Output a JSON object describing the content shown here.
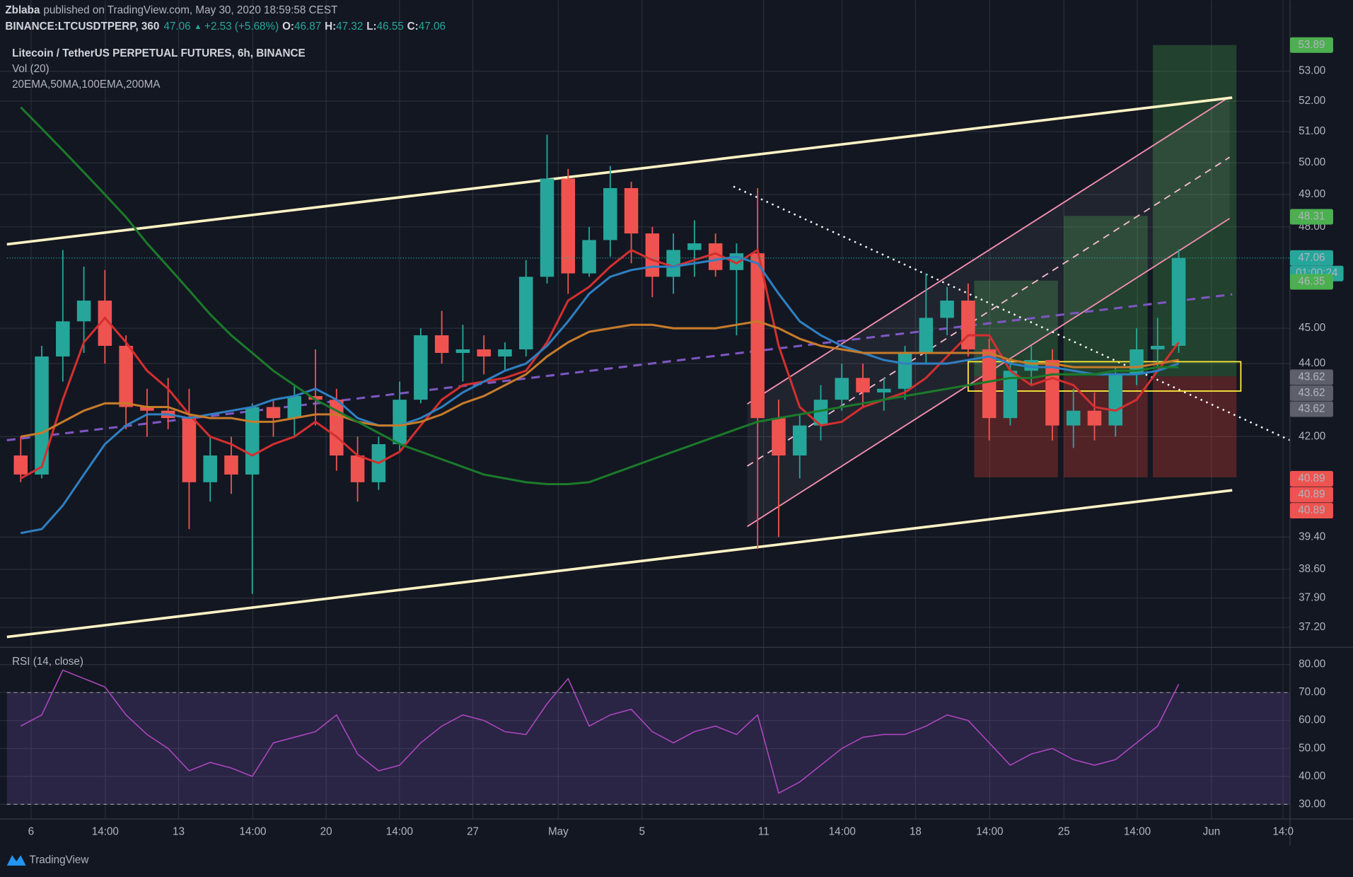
{
  "header": {
    "author": "Zblaba",
    "published": "published on TradingView.com, May 30, 2020 18:59:58 CEST",
    "symbol": "BINANCE:LTCUSDTPERP, 360",
    "last": 47.06,
    "change": "+2.53 (+5.68%)",
    "o_label": "O:",
    "open": 46.87,
    "h_label": "H:",
    "high": 47.32,
    "l_label": "L:",
    "low": 46.55,
    "c_label": "C:",
    "close": 47.06
  },
  "footer": {
    "brand": "TradingView"
  },
  "chart_data": [
    {
      "type": "candlestick",
      "title": "Litecoin / TetherUS PERPETUAL FUTURES, 6h, BINANCE",
      "subtitle": "Vol (20)",
      "indicators": "20EMA,50MA,100EMA,200MA",
      "up_color": "#26a69a",
      "down_color": "#ef5350",
      "open": [
        41.5,
        41.0,
        44.2,
        45.2,
        45.8,
        44.5,
        42.8,
        42.7,
        42.5,
        40.8,
        41.5,
        41.0,
        42.8,
        42.5,
        43.1,
        43.0,
        41.5,
        40.8,
        41.8,
        43.0,
        44.8,
        44.3,
        44.4,
        44.2,
        44.4,
        46.5,
        49.5,
        46.6,
        47.6,
        49.2,
        47.8,
        46.5,
        47.3,
        47.5,
        46.7,
        47.2,
        42.5,
        41.5,
        42.3,
        43.0,
        43.6,
        43.2,
        43.3,
        44.3,
        45.3,
        45.8,
        44.4,
        42.5,
        43.8,
        44.1,
        42.3,
        42.7,
        42.3,
        43.7,
        44.4,
        44.5
      ],
      "high": [
        42.0,
        44.5,
        47.3,
        46.8,
        46.7,
        44.8,
        43.3,
        43.6,
        43.3,
        42.0,
        42.0,
        42.9,
        43.0,
        43.4,
        44.4,
        43.3,
        42.0,
        42.0,
        43.5,
        45.0,
        45.5,
        45.1,
        44.8,
        44.6,
        47.0,
        50.9,
        49.8,
        48.0,
        49.9,
        49.4,
        48.0,
        47.8,
        48.2,
        47.8,
        47.5,
        49.2,
        43.0,
        42.6,
        43.4,
        44.0,
        44.0,
        43.6,
        44.5,
        46.6,
        46.2,
        46.3,
        44.7,
        44.1,
        44.5,
        44.4,
        43.3,
        43.2,
        43.9,
        45.0,
        45.3,
        47.32
      ],
      "low": [
        40.8,
        40.9,
        43.5,
        44.3,
        44.0,
        42.2,
        42.0,
        42.2,
        39.6,
        40.3,
        40.5,
        38.0,
        42.0,
        42.0,
        42.3,
        41.1,
        40.3,
        40.6,
        41.6,
        42.9,
        44.0,
        43.5,
        43.7,
        43.8,
        44.2,
        46.3,
        46.0,
        46.5,
        47.1,
        46.9,
        45.9,
        46.0,
        46.5,
        46.5,
        44.8,
        39.1,
        39.4,
        40.9,
        41.9,
        42.7,
        42.8,
        42.7,
        43.0,
        44.0,
        44.8,
        44.2,
        41.9,
        42.3,
        43.4,
        41.9,
        41.7,
        41.9,
        42.0,
        43.4,
        43.9,
        44.3
      ],
      "close": [
        41.0,
        44.2,
        45.2,
        45.8,
        44.5,
        42.8,
        42.7,
        42.5,
        40.8,
        41.5,
        41.0,
        42.8,
        42.5,
        43.1,
        43.0,
        41.5,
        40.8,
        41.8,
        43.0,
        44.8,
        44.3,
        44.4,
        44.2,
        44.4,
        46.5,
        49.5,
        46.6,
        47.6,
        49.2,
        47.8,
        46.5,
        47.3,
        47.5,
        46.7,
        47.2,
        42.5,
        41.5,
        42.3,
        43.0,
        43.6,
        43.2,
        43.3,
        44.3,
        45.3,
        45.8,
        44.4,
        42.5,
        43.8,
        44.1,
        42.3,
        42.7,
        42.3,
        43.7,
        44.4,
        44.5,
        47.06
      ],
      "series": [
        {
          "color": "#d32f2f",
          "values": [
            40.9,
            41.2,
            43.0,
            44.6,
            45.3,
            44.6,
            43.8,
            43.3,
            42.6,
            42.0,
            41.8,
            41.5,
            41.8,
            42.0,
            42.4,
            42.0,
            41.5,
            41.3,
            41.6,
            42.3,
            43.0,
            43.4,
            43.5,
            43.6,
            43.8,
            44.6,
            45.8,
            46.2,
            46.8,
            47.3,
            47.0,
            46.8,
            47.0,
            47.2,
            46.9,
            47.3,
            44.5,
            42.8,
            42.3,
            42.4,
            42.8,
            43.0,
            43.2,
            43.6,
            44.2,
            44.8,
            44.8,
            43.8,
            43.4,
            43.6,
            43.4,
            42.8,
            42.7,
            43.0,
            43.8,
            44.6
          ]
        },
        {
          "color": "#2f7fc1",
          "values": [
            39.5,
            39.6,
            40.2,
            41.0,
            41.8,
            42.3,
            42.6,
            42.6,
            42.5,
            42.6,
            42.7,
            42.8,
            43.0,
            43.1,
            43.3,
            43.0,
            42.5,
            42.3,
            42.3,
            42.5,
            42.8,
            43.2,
            43.5,
            43.8,
            44.0,
            44.5,
            45.2,
            46.0,
            46.5,
            46.7,
            46.8,
            46.8,
            46.9,
            47.0,
            47.1,
            46.9,
            46.0,
            45.2,
            44.8,
            44.5,
            44.3,
            44.1,
            44.0,
            44.0,
            44.0,
            44.1,
            44.2,
            44.0,
            43.9,
            43.9,
            43.8,
            43.7,
            43.7,
            43.7,
            43.8,
            44.0
          ]
        },
        {
          "color": "#c77b2a",
          "values": [
            42.0,
            42.1,
            42.4,
            42.7,
            42.9,
            42.9,
            42.8,
            42.8,
            42.6,
            42.5,
            42.5,
            42.4,
            42.4,
            42.5,
            42.6,
            42.6,
            42.4,
            42.3,
            42.3,
            42.4,
            42.6,
            42.9,
            43.1,
            43.4,
            43.7,
            44.2,
            44.6,
            44.9,
            45.0,
            45.1,
            45.1,
            45.0,
            45.0,
            45.0,
            45.1,
            45.2,
            45.0,
            44.7,
            44.5,
            44.4,
            44.3,
            44.3,
            44.3,
            44.3,
            44.3,
            44.3,
            44.3,
            44.1,
            44.0,
            44.0,
            43.9,
            43.9,
            43.9,
            43.9,
            44.0,
            44.1
          ]
        },
        {
          "color": "#1b7a2a",
          "values": [
            51.8,
            51.1,
            50.4,
            49.7,
            49.0,
            48.3,
            47.5,
            46.8,
            46.1,
            45.4,
            44.8,
            44.3,
            43.8,
            43.4,
            43.0,
            42.7,
            42.4,
            42.1,
            41.8,
            41.6,
            41.4,
            41.2,
            41.0,
            40.9,
            40.8,
            40.75,
            40.75,
            40.8,
            41.0,
            41.2,
            41.4,
            41.6,
            41.8,
            42.0,
            42.2,
            42.4,
            42.5,
            42.6,
            42.7,
            42.8,
            42.9,
            43.0,
            43.1,
            43.2,
            43.3,
            43.4,
            43.5,
            43.6,
            43.6,
            43.7,
            43.7,
            43.7,
            43.8,
            43.8,
            43.9,
            43.9
          ]
        }
      ],
      "log": true,
      "grid": true,
      "ylim": [
        36.77,
        54.01
      ],
      "yticks": [
        {
          "value": 53,
          "label": "53.00"
        },
        {
          "value": 52,
          "label": "52.00"
        },
        {
          "value": 51,
          "label": "51.00"
        },
        {
          "value": 50,
          "label": "50.00"
        },
        {
          "value": 49,
          "label": "49.00"
        },
        {
          "value": 48,
          "label": "48.00"
        },
        {
          "value": 45,
          "label": "45.00"
        },
        {
          "value": 44,
          "label": "44.00"
        },
        {
          "value": 42,
          "label": "42.00"
        },
        {
          "value": 39.4,
          "label": "39.40"
        },
        {
          "value": 38.6,
          "label": "38.60"
        },
        {
          "value": 37.9,
          "label": "37.90"
        },
        {
          "value": 37.2,
          "label": "37.20"
        }
      ],
      "price_tags": [
        {
          "value": 53.89,
          "color": "#4caf50"
        },
        {
          "value": 48.31,
          "color": "#4caf50"
        },
        {
          "value": 47.06,
          "color": "#26a69a"
        },
        {
          "value": 46.35,
          "color": "#4caf50"
        },
        {
          "value": 43.62,
          "color": "#5d606b"
        },
        {
          "value": 43.62,
          "color": "#5d606b"
        },
        {
          "value": 43.62,
          "color": "#5d606b"
        },
        {
          "value": 40.89,
          "color": "#ef5350"
        },
        {
          "value": 40.89,
          "color": "#ef5350"
        },
        {
          "value": 40.89,
          "color": "#ef5350"
        }
      ],
      "countdown": "01:00:24",
      "x_labels": [
        "6",
        "14:00",
        "13",
        "14:00",
        "20",
        "14:00",
        "27",
        "May",
        "5",
        "11",
        "14:00",
        "18",
        "14:00",
        "25",
        "14:00",
        "Jun",
        "14:0"
      ]
    },
    {
      "type": "line",
      "title": "RSI (14, close)",
      "color": "#ab47bc",
      "values": [
        58,
        62,
        78,
        75,
        72,
        62,
        55,
        50,
        42,
        45,
        43,
        40,
        52,
        54,
        56,
        62,
        48,
        42,
        44,
        52,
        58,
        62,
        60,
        56,
        55,
        66,
        75,
        58,
        62,
        64,
        56,
        52,
        56,
        58,
        55,
        62,
        34,
        38,
        44,
        50,
        54,
        55,
        55,
        58,
        62,
        60,
        52,
        44,
        48,
        50,
        46,
        44,
        46,
        52,
        58,
        73
      ],
      "band": [
        30,
        70
      ],
      "ylim": [
        25.06,
        85.56
      ],
      "yticks": [
        {
          "value": 80,
          "label": "80.00"
        },
        {
          "value": 70,
          "label": "70.00"
        },
        {
          "value": 60,
          "label": "60.00"
        },
        {
          "value": 50,
          "label": "50.00"
        },
        {
          "value": 40,
          "label": "40.00"
        },
        {
          "value": 30,
          "label": "30.00"
        }
      ]
    }
  ]
}
